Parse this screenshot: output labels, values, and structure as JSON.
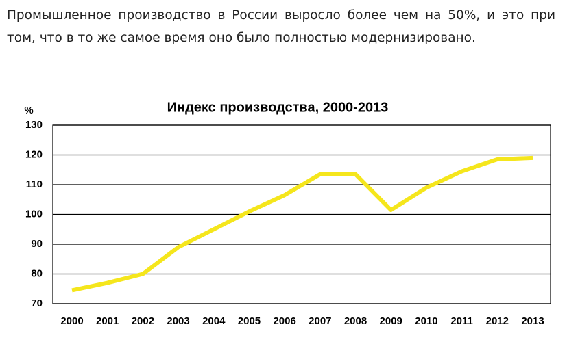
{
  "paragraph": "Промышленное производство в России выросло более чем на 50%, и это при том, что в то же самое время оно было полностью модернизировано.",
  "chart_data": {
    "type": "line",
    "title": "Индекс производства, 2000-2013",
    "y_label": "%",
    "categories": [
      "2000",
      "2001",
      "2002",
      "2003",
      "2004",
      "2005",
      "2006",
      "2007",
      "2008",
      "2009",
      "2010",
      "2011",
      "2012",
      "2013"
    ],
    "values": [
      74.5,
      77,
      80,
      89,
      95,
      101,
      106.5,
      113.5,
      113.5,
      101.5,
      109,
      114.5,
      118.5,
      119
    ],
    "color": "#f5e61c",
    "ylim": [
      70,
      130
    ],
    "yticks": [
      70,
      80,
      90,
      100,
      110,
      120,
      130
    ],
    "grid": true
  }
}
